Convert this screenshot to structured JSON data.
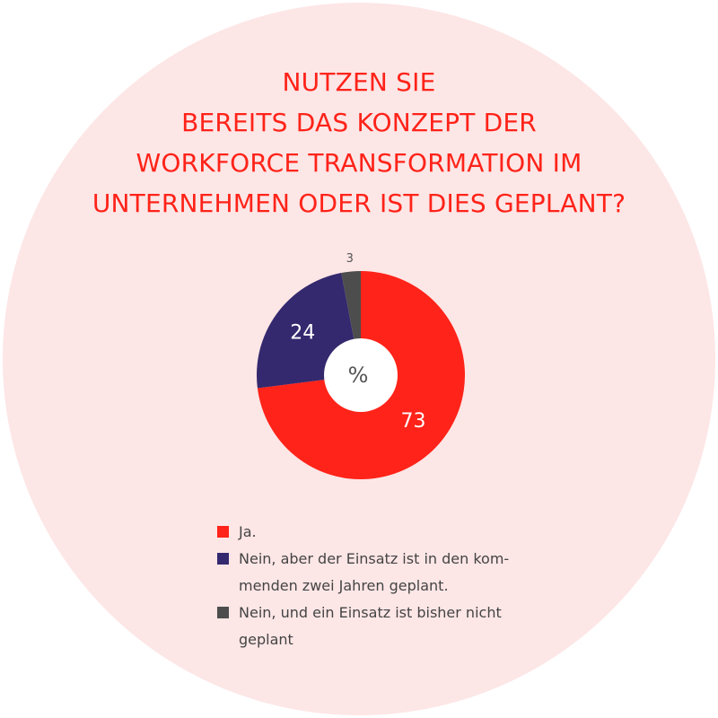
{
  "title_lines": [
    "NUTZEN SIE",
    "BEREITS DAS KONZEPT DER",
    "WORKFORCE TRANSFORMATION IM",
    "UNTERNEHMEN ODER IST DIES GEPLANT?"
  ],
  "colors": {
    "background_circle": "#fde6e6",
    "title": "#ff2319",
    "ja": "#ff2319",
    "geplant": "#34296e",
    "nicht_geplant": "#4d4d4d",
    "center": "#ffffff"
  },
  "chart_data": {
    "type": "pie",
    "center_label": "%",
    "slices": [
      {
        "label_key": "ja",
        "value": 73,
        "display": "73"
      },
      {
        "label_key": "geplant",
        "value": 24,
        "display": "24"
      },
      {
        "label_key": "nicht_geplant",
        "value": 3,
        "display": "3"
      }
    ],
    "legend": [
      {
        "key": "ja",
        "lines": [
          "Ja."
        ]
      },
      {
        "key": "geplant",
        "lines": [
          "Nein, aber der Einsatz ist in den kom-",
          "menden zwei Jahren geplant."
        ]
      },
      {
        "key": "nicht_geplant",
        "lines": [
          "Nein, und ein Einsatz ist bisher nicht",
          "geplant"
        ]
      }
    ]
  }
}
